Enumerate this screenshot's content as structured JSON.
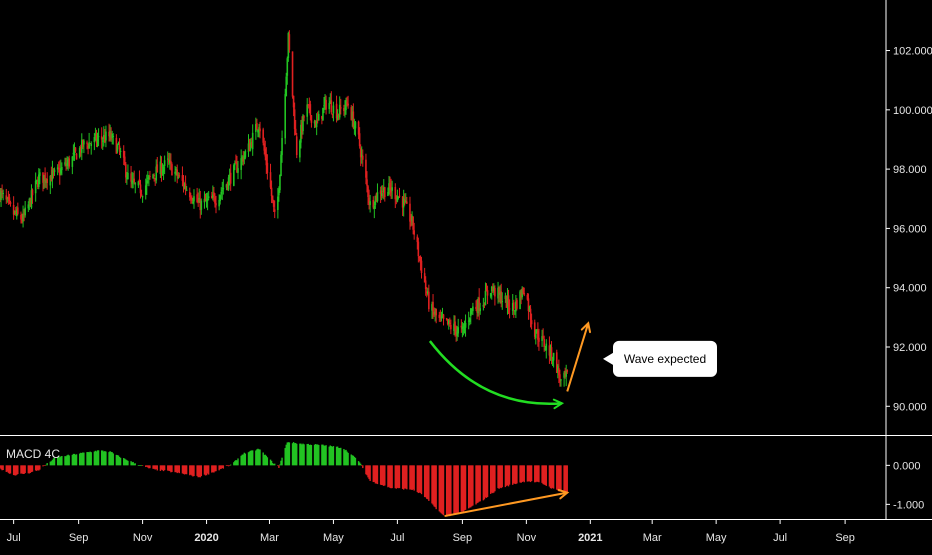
{
  "chart_data": [
    {
      "type": "candlestick",
      "panel": "price",
      "yticks": [
        "102.000",
        "100.000",
        "98.000",
        "96.000",
        "94.000",
        "92.000",
        "90.000"
      ],
      "ytick_values": [
        102,
        100,
        98,
        96,
        94,
        92,
        90
      ],
      "ylim": [
        89.2,
        103.3
      ],
      "x_range": [
        "2019-06-18",
        "2021-10-10"
      ],
      "grid": false,
      "colors": {
        "up": "#22c322",
        "down": "#e02020",
        "background": "#000000",
        "axis": "#ffffff"
      },
      "candle_start": "2019-06-18",
      "candle_end": "2020-12-10",
      "close_keypoints": [
        [
          "2019-06-18",
          97.2
        ],
        [
          "2019-07-01",
          96.5
        ],
        [
          "2019-07-10",
          96.3
        ],
        [
          "2019-07-25",
          97.7
        ],
        [
          "2019-08-10",
          97.8
        ],
        [
          "2019-08-25",
          98.3
        ],
        [
          "2019-09-05",
          98.8
        ],
        [
          "2019-09-20",
          99.0
        ],
        [
          "2019-10-01",
          99.1
        ],
        [
          "2019-10-10",
          98.6
        ],
        [
          "2019-10-20",
          97.5
        ],
        [
          "2019-11-01",
          97.3
        ],
        [
          "2019-11-10",
          97.8
        ],
        [
          "2019-11-25",
          98.2
        ],
        [
          "2019-12-10",
          97.5
        ],
        [
          "2019-12-25",
          96.8
        ],
        [
          "2020-01-10",
          97.0
        ],
        [
          "2020-01-25",
          97.8
        ],
        [
          "2020-02-10",
          98.7
        ],
        [
          "2020-02-20",
          99.6
        ],
        [
          "2020-03-01",
          97.6
        ],
        [
          "2020-03-07",
          96.1
        ],
        [
          "2020-03-11",
          98.0
        ],
        [
          "2020-03-19",
          102.4
        ],
        [
          "2020-03-27",
          98.6
        ],
        [
          "2020-04-05",
          100.1
        ],
        [
          "2020-04-15",
          99.5
        ],
        [
          "2020-04-25",
          100.3
        ],
        [
          "2020-05-05",
          99.9
        ],
        [
          "2020-05-15",
          100.2
        ],
        [
          "2020-05-25",
          99.0
        ],
        [
          "2020-06-05",
          96.8
        ],
        [
          "2020-06-15",
          97.3
        ],
        [
          "2020-06-25",
          97.3
        ],
        [
          "2020-07-05",
          97.0
        ],
        [
          "2020-07-15",
          96.2
        ],
        [
          "2020-07-25",
          94.5
        ],
        [
          "2020-08-01",
          93.3
        ],
        [
          "2020-08-10",
          92.9
        ],
        [
          "2020-08-20",
          92.7
        ],
        [
          "2020-09-01",
          92.5
        ],
        [
          "2020-09-10",
          93.3
        ],
        [
          "2020-09-20",
          93.5
        ],
        [
          "2020-09-28",
          94.0
        ],
        [
          "2020-10-10",
          93.6
        ],
        [
          "2020-10-20",
          93.3
        ],
        [
          "2020-10-30",
          94.0
        ],
        [
          "2020-11-08",
          92.6
        ],
        [
          "2020-11-18",
          92.1
        ],
        [
          "2020-11-28",
          91.6
        ],
        [
          "2020-12-04",
          90.8
        ],
        [
          "2020-12-10",
          91.0
        ]
      ],
      "annotations": [
        {
          "kind": "curved-arrow",
          "color": "#22dd22",
          "points": [
            [
              "2020-08-01",
              92.2
            ],
            [
              "2020-09-20",
              89.9
            ],
            [
              "2020-12-05",
              90.1
            ]
          ]
        },
        {
          "kind": "arrow",
          "color": "#ff9922",
          "from": [
            "2020-12-10",
            90.5
          ],
          "to": [
            "2020-12-30",
            92.8
          ]
        },
        {
          "kind": "callout",
          "text": "Wave expected",
          "anchor": [
            "2021-01-15",
            91.6
          ]
        }
      ]
    },
    {
      "type": "histogram",
      "panel": "macd",
      "title": "MACD 4C",
      "yticks": [
        "0.000",
        "-1.000"
      ],
      "ytick_values": [
        0,
        -1
      ],
      "ylim": [
        -1.35,
        0.65
      ],
      "colors": {
        "positive": "#22c322",
        "negative": "#e02020"
      },
      "value_keypoints": [
        [
          "2019-06-18",
          -0.08
        ],
        [
          "2019-07-01",
          -0.25
        ],
        [
          "2019-07-15",
          -0.2
        ],
        [
          "2019-07-25",
          -0.12
        ],
        [
          "2019-08-01",
          0.02
        ],
        [
          "2019-08-10",
          0.2
        ],
        [
          "2019-09-01",
          0.3
        ],
        [
          "2019-09-20",
          0.38
        ],
        [
          "2019-10-01",
          0.35
        ],
        [
          "2019-10-10",
          0.22
        ],
        [
          "2019-10-25",
          0.05
        ],
        [
          "2019-11-10",
          -0.1
        ],
        [
          "2019-11-25",
          -0.15
        ],
        [
          "2019-12-10",
          -0.22
        ],
        [
          "2019-12-25",
          -0.3
        ],
        [
          "2020-01-10",
          -0.15
        ],
        [
          "2020-01-25",
          0.02
        ],
        [
          "2020-02-05",
          0.3
        ],
        [
          "2020-02-20",
          0.42
        ],
        [
          "2020-03-05",
          0.05
        ],
        [
          "2020-03-10",
          -0.05
        ],
        [
          "2020-03-18",
          0.6
        ],
        [
          "2020-04-01",
          0.55
        ],
        [
          "2020-04-20",
          0.52
        ],
        [
          "2020-05-10",
          0.45
        ],
        [
          "2020-05-25",
          0.12
        ],
        [
          "2020-06-05",
          -0.4
        ],
        [
          "2020-06-25",
          -0.58
        ],
        [
          "2020-07-15",
          -0.62
        ],
        [
          "2020-07-25",
          -0.75
        ],
        [
          "2020-08-05",
          -1.05
        ],
        [
          "2020-08-15",
          -1.32
        ],
        [
          "2020-09-01",
          -1.2
        ],
        [
          "2020-09-20",
          -0.9
        ],
        [
          "2020-10-05",
          -0.6
        ],
        [
          "2020-10-20",
          -0.48
        ],
        [
          "2020-11-01",
          -0.4
        ],
        [
          "2020-11-15",
          -0.45
        ],
        [
          "2020-11-28",
          -0.62
        ],
        [
          "2020-12-10",
          -0.7
        ]
      ],
      "annotations": [
        {
          "kind": "arrow",
          "color": "#ff9922",
          "from": [
            "2020-08-15",
            -1.3
          ],
          "to": [
            "2020-12-10",
            -0.7
          ]
        }
      ]
    }
  ],
  "x_axis": {
    "ticks": [
      {
        "date": "2019-07-01",
        "label": "Jul"
      },
      {
        "date": "2019-09-01",
        "label": "Sep"
      },
      {
        "date": "2019-11-01",
        "label": "Nov"
      },
      {
        "date": "2020-01-01",
        "label": "2020",
        "bold": true
      },
      {
        "date": "2020-03-01",
        "label": "Mar"
      },
      {
        "date": "2020-05-01",
        "label": "May"
      },
      {
        "date": "2020-07-01",
        "label": "Jul"
      },
      {
        "date": "2020-09-01",
        "label": "Sep"
      },
      {
        "date": "2020-11-01",
        "label": "Nov"
      },
      {
        "date": "2021-01-01",
        "label": "2021",
        "bold": true
      },
      {
        "date": "2021-03-01",
        "label": "Mar"
      },
      {
        "date": "2021-05-01",
        "label": "May"
      },
      {
        "date": "2021-07-01",
        "label": "Jul"
      },
      {
        "date": "2021-09-01",
        "label": "Sep"
      }
    ]
  }
}
